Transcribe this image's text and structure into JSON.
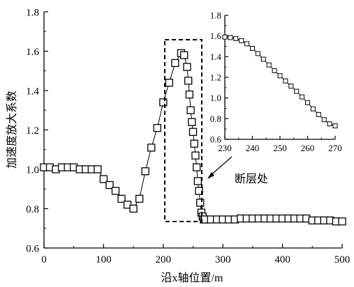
{
  "chart_data": [
    {
      "type": "line",
      "title": "",
      "xlabel": "沿x轴位置/m",
      "ylabel": "加速度放大系数",
      "xlim": [
        0,
        500
      ],
      "ylim": [
        0.6,
        1.8
      ],
      "xticks": [
        0,
        100,
        200,
        300,
        400,
        500
      ],
      "yticks": [
        0.6,
        0.8,
        1.0,
        1.2,
        1.4,
        1.6,
        1.8
      ],
      "xtick_labels": [
        "0",
        "100",
        "200",
        "300",
        "400",
        "500"
      ],
      "ytick_labels": [
        "0.6",
        "0.8",
        "1.0",
        "1.2",
        "1.4",
        "1.6",
        "1.8"
      ],
      "grid": false,
      "marker": "square",
      "series": [
        {
          "x": [
            0,
            10,
            20,
            30,
            40,
            50,
            60,
            70,
            80,
            90,
            100,
            110,
            120,
            130,
            140,
            150,
            160,
            170,
            180,
            190,
            200,
            210,
            220,
            230,
            235,
            240,
            242,
            244,
            246,
            248,
            250,
            252,
            254,
            256,
            258,
            260,
            262,
            264,
            266,
            268,
            270,
            280,
            290,
            300,
            310,
            320,
            330,
            340,
            350,
            360,
            370,
            380,
            390,
            400,
            410,
            420,
            430,
            440,
            450,
            460,
            470,
            480,
            490,
            500
          ],
          "values": [
            1.01,
            1.01,
            1.0,
            1.01,
            1.01,
            1.01,
            1.0,
            1.0,
            1.0,
            1.0,
            0.95,
            0.92,
            0.89,
            0.85,
            0.82,
            0.8,
            0.85,
            0.99,
            1.11,
            1.21,
            1.34,
            1.44,
            1.54,
            1.59,
            1.58,
            1.52,
            1.45,
            1.38,
            1.3,
            1.24,
            1.19,
            1.13,
            1.07,
            1.01,
            0.94,
            0.89,
            0.83,
            0.78,
            0.76,
            0.745,
            0.745,
            0.745,
            0.745,
            0.745,
            0.745,
            0.745,
            0.75,
            0.75,
            0.75,
            0.75,
            0.75,
            0.75,
            0.75,
            0.75,
            0.75,
            0.75,
            0.75,
            0.75,
            0.74,
            0.74,
            0.74,
            0.74,
            0.735,
            0.735
          ]
        }
      ],
      "annotation": "断层处",
      "highlight_range_x": [
        230,
        270
      ]
    },
    {
      "type": "line",
      "title": "",
      "xlabel": "",
      "ylabel": "",
      "xlim": [
        230,
        270
      ],
      "ylim": [
        0.6,
        1.8
      ],
      "xticks": [
        230,
        240,
        250,
        260,
        270
      ],
      "yticks": [
        0.6,
        0.8,
        1.0,
        1.2,
        1.4,
        1.6,
        1.8
      ],
      "xtick_labels": [
        "230",
        "240",
        "250",
        "260",
        "270"
      ],
      "ytick_labels": [
        "0.6",
        "0.8",
        "1.0",
        "1.2",
        "1.4",
        "1.6",
        "1.8"
      ],
      "grid": false,
      "marker": "square",
      "series": [
        {
          "x": [
            230,
            232,
            234,
            236,
            238,
            240,
            242,
            244,
            246,
            248,
            250,
            252,
            254,
            256,
            258,
            260,
            262,
            264,
            266,
            268,
            270
          ],
          "values": [
            1.59,
            1.585,
            1.575,
            1.555,
            1.525,
            1.48,
            1.43,
            1.375,
            1.32,
            1.265,
            1.215,
            1.165,
            1.115,
            1.065,
            1.01,
            0.955,
            0.895,
            0.84,
            0.79,
            0.75,
            0.73
          ]
        }
      ]
    }
  ]
}
